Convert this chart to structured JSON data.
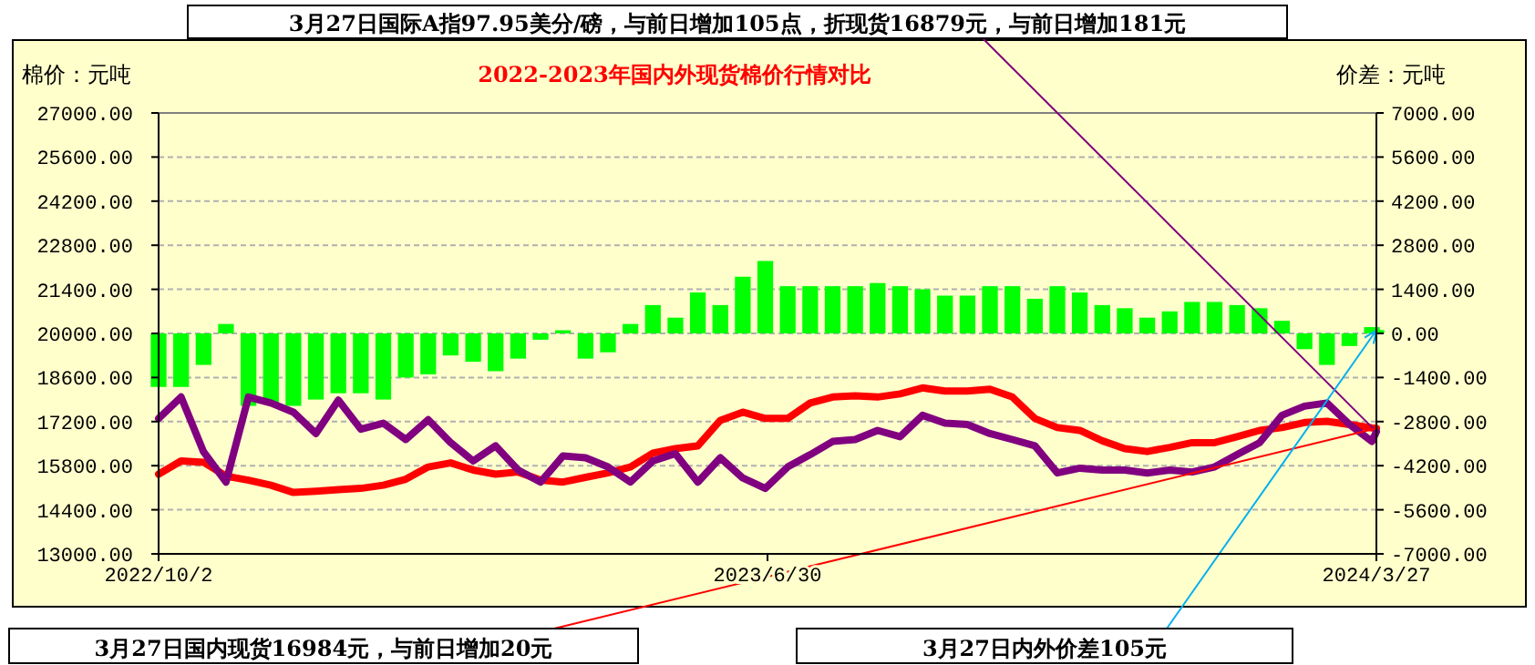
{
  "chart_data": {
    "type": "line",
    "title": "2022-2023年国内外现货棉价行情对比",
    "ylabel": "棉价：元吨",
    "y2label": "价差：元吨",
    "x": [
      "2022-10-02",
      "2022-10-12",
      "2022-10-22",
      "2022-11-01",
      "2022-11-11",
      "2022-11-21",
      "2022-12-01",
      "2022-12-11",
      "2022-12-21",
      "2022-12-31",
      "2023-01-10",
      "2023-01-20",
      "2023-01-30",
      "2023-02-09",
      "2023-02-19",
      "2023-03-01",
      "2023-03-11",
      "2023-03-21",
      "2023-03-31",
      "2023-04-10",
      "2023-04-20",
      "2023-04-30",
      "2023-05-10",
      "2023-05-20",
      "2023-05-30",
      "2023-06-09",
      "2023-06-19",
      "2023-06-29",
      "2023-07-09",
      "2023-07-19",
      "2023-07-29",
      "2023-08-08",
      "2023-08-18",
      "2023-08-28",
      "2023-09-07",
      "2023-09-17",
      "2023-09-27",
      "2023-10-07",
      "2023-10-17",
      "2023-10-27",
      "2023-11-06",
      "2023-11-16",
      "2023-11-26",
      "2023-12-06",
      "2023-12-16",
      "2023-12-26",
      "2024-01-05",
      "2024-01-15",
      "2024-01-25",
      "2024-02-04",
      "2024-02-14",
      "2024-02-24",
      "2024-03-05",
      "2024-03-15",
      "2024-03-25",
      "2024-03-27"
    ],
    "series": [
      {
        "type": "bar",
        "axis": "y2",
        "color": "#00ff00",
        "values": [
          -1700,
          -1700,
          -1000,
          300,
          -2300,
          -2200,
          -2300,
          -2100,
          -1900,
          -1900,
          -2100,
          -1400,
          -1300,
          -700,
          -900,
          -1200,
          -800,
          -200,
          100,
          -800,
          -600,
          300,
          900,
          500,
          1300,
          900,
          1800,
          2300,
          1500,
          1500,
          1500,
          1500,
          1600,
          1500,
          1400,
          1200,
          1200,
          1500,
          1500,
          1100,
          1500,
          1300,
          900,
          800,
          500,
          700,
          1000,
          1000,
          900,
          800,
          400,
          -500,
          -1000,
          -400,
          200,
          105
        ]
      },
      {
        "color": "#ff0000",
        "values": [
          15530,
          15950,
          15910,
          15470,
          15340,
          15180,
          14950,
          14990,
          15040,
          15080,
          15180,
          15370,
          15760,
          15890,
          15660,
          15530,
          15600,
          15340,
          15280,
          15430,
          15570,
          15760,
          16200,
          16340,
          16430,
          17240,
          17500,
          17300,
          17300,
          17790,
          17980,
          18020,
          17980,
          18080,
          18270,
          18170,
          18170,
          18230,
          17980,
          17300,
          17010,
          16920,
          16590,
          16340,
          16250,
          16380,
          16530,
          16530,
          16720,
          16920,
          17010,
          17170,
          17210,
          17110,
          17000,
          16984
        ]
      },
      {
        "color": "#800080",
        "values": [
          17300,
          17980,
          16240,
          15280,
          17980,
          17790,
          17500,
          16820,
          17880,
          16960,
          17150,
          16630,
          17260,
          16530,
          15950,
          16430,
          15660,
          15280,
          16110,
          16050,
          15760,
          15280,
          15950,
          16180,
          15280,
          16050,
          15410,
          15080,
          15760,
          16150,
          16570,
          16630,
          16920,
          16720,
          17400,
          17150,
          17110,
          16820,
          16630,
          16430,
          15570,
          15720,
          15660,
          15660,
          15570,
          15660,
          15600,
          15760,
          16150,
          16530,
          17400,
          17690,
          17790,
          17110,
          16570,
          16879
        ]
      }
    ],
    "xlim": [
      "2022-10-02",
      "2024-03-27"
    ],
    "xticks": [
      {
        "value": "2022-10-02",
        "label": "2022/10/2"
      },
      {
        "value": "2023-06-30",
        "label": "2023/6/30"
      },
      {
        "value": "2024-03-27",
        "label": "2024/3/27"
      }
    ],
    "ylim": [
      13000,
      27000
    ],
    "yticks": [
      {
        "value": 13000,
        "label": "13000.00"
      },
      {
        "value": 14400,
        "label": "14400.00"
      },
      {
        "value": 15800,
        "label": "15800.00"
      },
      {
        "value": 17200,
        "label": "17200.00"
      },
      {
        "value": 18600,
        "label": "18600.00"
      },
      {
        "value": 20000,
        "label": "20000.00"
      },
      {
        "value": 21400,
        "label": "21400.00"
      },
      {
        "value": 22800,
        "label": "22800.00"
      },
      {
        "value": 24200,
        "label": "24200.00"
      },
      {
        "value": 25600,
        "label": "25600.00"
      },
      {
        "value": 27000,
        "label": "27000.00"
      }
    ],
    "y2lim": [
      -7000,
      7000
    ],
    "y2ticks": [
      {
        "value": -7000,
        "label": "-7000.00"
      },
      {
        "value": -5600,
        "label": "-5600.00"
      },
      {
        "value": -4200,
        "label": "-4200.00"
      },
      {
        "value": -2800,
        "label": "-2800.00"
      },
      {
        "value": -1400,
        "label": "-1400.00"
      },
      {
        "value": 0,
        "label": "0.00"
      },
      {
        "value": 1400,
        "label": "1400.00"
      },
      {
        "value": 2800,
        "label": "2800.00"
      },
      {
        "value": 4200,
        "label": "4200.00"
      },
      {
        "value": 5600,
        "label": "5600.00"
      },
      {
        "value": 7000,
        "label": "7000.00"
      }
    ],
    "grid": "y",
    "annotations": [
      {
        "text": "3月27日国际A指97.95美分/磅，与前日增加105点，折现货16879元，与前日增加181元",
        "x": "2024-03-27",
        "y": 16879
      },
      {
        "text": "3月27日国内现货16984元，与前日增加20元",
        "x": "2024-03-27",
        "y": 16984
      },
      {
        "text": "3月27日内外价差105元",
        "x": "2024-03-27",
        "y": 20100
      }
    ]
  }
}
